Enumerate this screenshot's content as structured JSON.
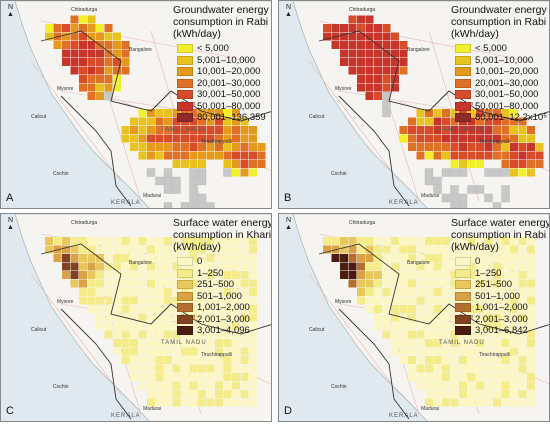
{
  "panels": [
    {
      "letter": "A",
      "title": [
        "Groundwater energy",
        "consumption in Rabi",
        "(kWh/day)"
      ],
      "legend": [
        {
          "label": "< 5,000",
          "color": "#f2ef2c"
        },
        {
          "label": "5,001–10,000",
          "color": "#e8c21e"
        },
        {
          "label": "10,001–20,000",
          "color": "#e59a1c"
        },
        {
          "label": "20,001–30,000",
          "color": "#e07026"
        },
        {
          "label": "30,001–50,000",
          "color": "#d84c2a"
        },
        {
          "label": "50,001–80,000",
          "color": "#c8352b"
        },
        {
          "label": "80,001–136,359",
          "color": "#8e2a2a"
        }
      ]
    },
    {
      "letter": "B",
      "title": [
        "Groundwater energy",
        "consumption in Rabi",
        "(kWh/day)"
      ],
      "legend": [
        {
          "label": "< 5,000",
          "color": "#f2ef2c"
        },
        {
          "label": "5,001–10,000",
          "color": "#e8c21e"
        },
        {
          "label": "10,001–20,000",
          "color": "#e59a1c"
        },
        {
          "label": "20,001–30,000",
          "color": "#e07026"
        },
        {
          "label": "30,001–50,000",
          "color": "#d84c2a"
        },
        {
          "label": "50,001–80,000",
          "color": "#c8352b"
        },
        {
          "label": "80,001–12.2x10⁵",
          "color": "#8e2a2a"
        }
      ]
    },
    {
      "letter": "C",
      "title": [
        "Surface water energy",
        "consumption in Kharif",
        "(kWh/day)"
      ],
      "legend": [
        {
          "label": "0",
          "color": "#fbf6c4"
        },
        {
          "label": "1–250",
          "color": "#f4ec8a"
        },
        {
          "label": "251–500",
          "color": "#e8c85c"
        },
        {
          "label": "501–1,000",
          "color": "#d9a246"
        },
        {
          "label": "1,001–2,000",
          "color": "#b56e30"
        },
        {
          "label": "2,001–3,000",
          "color": "#80421f"
        },
        {
          "label": "3,001–4,096",
          "color": "#4a1c12"
        }
      ]
    },
    {
      "letter": "D",
      "title": [
        "Surface water energy",
        "consumption in Rabi",
        "(kWh/day)"
      ],
      "legend": [
        {
          "label": "0",
          "color": "#fbf6c4"
        },
        {
          "label": "1–250",
          "color": "#f4ec8a"
        },
        {
          "label": "251–500",
          "color": "#e8c85c"
        },
        {
          "label": "501–1,000",
          "color": "#d9a246"
        },
        {
          "label": "1,001–2,000",
          "color": "#b56e30"
        },
        {
          "label": "2,001–3,000",
          "color": "#80421f"
        },
        {
          "label": "3,001–6,842",
          "color": "#4a1c12"
        }
      ]
    }
  ],
  "map_labels": {
    "north": "N",
    "kerala": "KERALA",
    "tamil_nadu": "TAMIL NADU",
    "mysore": "Mysore",
    "bangalore": "Bangalore",
    "calicut": "Calicut",
    "cochin": "Cochin",
    "madurai": "Madurai",
    "tiruchirappalli": "Tiruchirappalli",
    "salem": "Salem",
    "chitradurga": "Chitradurga"
  }
}
